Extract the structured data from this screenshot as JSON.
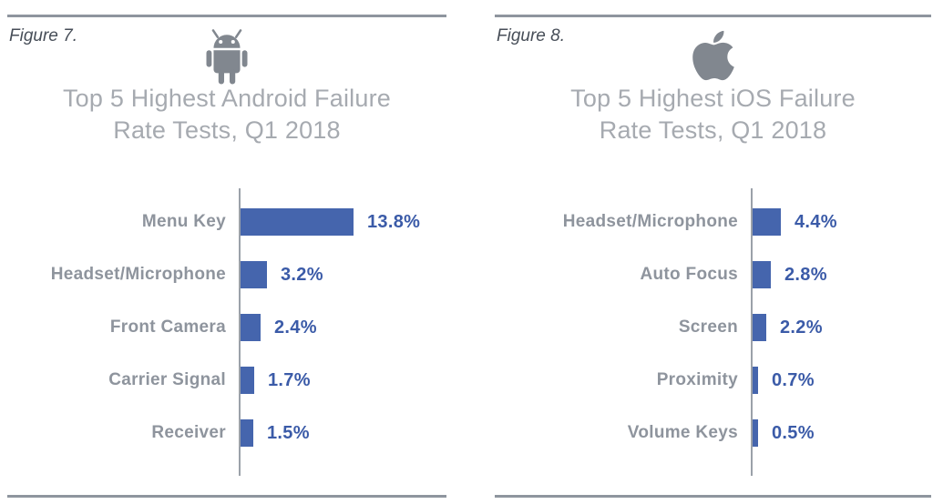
{
  "colors": {
    "bar": "#4565ad",
    "value_text": "#3b5ba8",
    "label_text": "#8e949d",
    "title_text": "#a6aab0",
    "figure_text": "#474e58",
    "rule": "#8e959e",
    "axis": "#9ba1a9",
    "icon": "#81878f"
  },
  "panels": [
    {
      "figure_label": "Figure 7.",
      "icon": "android-icon",
      "title_lines": [
        "Top 5 Highest Android Failure",
        "Rate Tests, Q1 2018"
      ]
    },
    {
      "figure_label": "Figure 8.",
      "icon": "apple-icon",
      "title_lines": [
        "Top 5 Highest iOS Failure",
        "Rate Tests, Q1 2018"
      ]
    }
  ],
  "chart_data": [
    {
      "type": "bar",
      "orientation": "horizontal",
      "title": "Top 5 Highest Android Failure Rate Tests, Q1 2018",
      "categories": [
        "Menu Key",
        "Headset/Microphone",
        "Front Camera",
        "Carrier Signal",
        "Receiver"
      ],
      "values": [
        13.8,
        3.2,
        2.4,
        1.7,
        1.5
      ],
      "value_labels": [
        "13.8%",
        "3.2%",
        "2.4%",
        "1.7%",
        "1.5%"
      ],
      "unit": "%",
      "xlim": [
        0,
        15
      ],
      "grid": false,
      "legend": false
    },
    {
      "type": "bar",
      "orientation": "horizontal",
      "title": "Top 5 Highest iOS Failure Rate Tests, Q1 2018",
      "categories": [
        "Headset/Microphone",
        "Auto Focus",
        "Screen",
        "Proximity",
        "Volume Keys"
      ],
      "values": [
        4.4,
        2.8,
        2.2,
        0.7,
        0.5
      ],
      "value_labels": [
        "4.4%",
        "2.8%",
        "2.2%",
        "0.7%",
        "0.5%"
      ],
      "unit": "%",
      "xlim": [
        0,
        5
      ],
      "grid": false,
      "legend": false
    }
  ]
}
